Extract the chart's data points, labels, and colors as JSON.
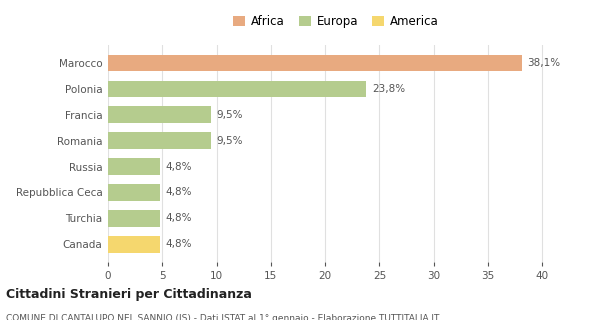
{
  "categories": [
    "Canada",
    "Turchia",
    "Repubblica Ceca",
    "Russia",
    "Romania",
    "Francia",
    "Polonia",
    "Marocco"
  ],
  "values": [
    4.8,
    4.8,
    4.8,
    4.8,
    9.5,
    9.5,
    23.8,
    38.1
  ],
  "labels": [
    "4,8%",
    "4,8%",
    "4,8%",
    "4,8%",
    "9,5%",
    "9,5%",
    "23,8%",
    "38,1%"
  ],
  "colors": [
    "#f5d76e",
    "#b5cc8e",
    "#b5cc8e",
    "#b5cc8e",
    "#b5cc8e",
    "#b5cc8e",
    "#b5cc8e",
    "#e8aa80"
  ],
  "legend": [
    {
      "label": "Africa",
      "color": "#e8aa80"
    },
    {
      "label": "Europa",
      "color": "#b5cc8e"
    },
    {
      "label": "America",
      "color": "#f5d76e"
    }
  ],
  "xlim": [
    0,
    42
  ],
  "xticks": [
    0,
    5,
    10,
    15,
    20,
    25,
    30,
    35,
    40
  ],
  "title": "Cittadini Stranieri per Cittadinanza",
  "subtitle": "COMUNE DI CANTALUPO NEL SANNIO (IS) - Dati ISTAT al 1° gennaio - Elaborazione TUTTITALIA.IT",
  "background_color": "#ffffff",
  "grid_color": "#e0e0e0",
  "text_color": "#555555",
  "title_color": "#222222"
}
